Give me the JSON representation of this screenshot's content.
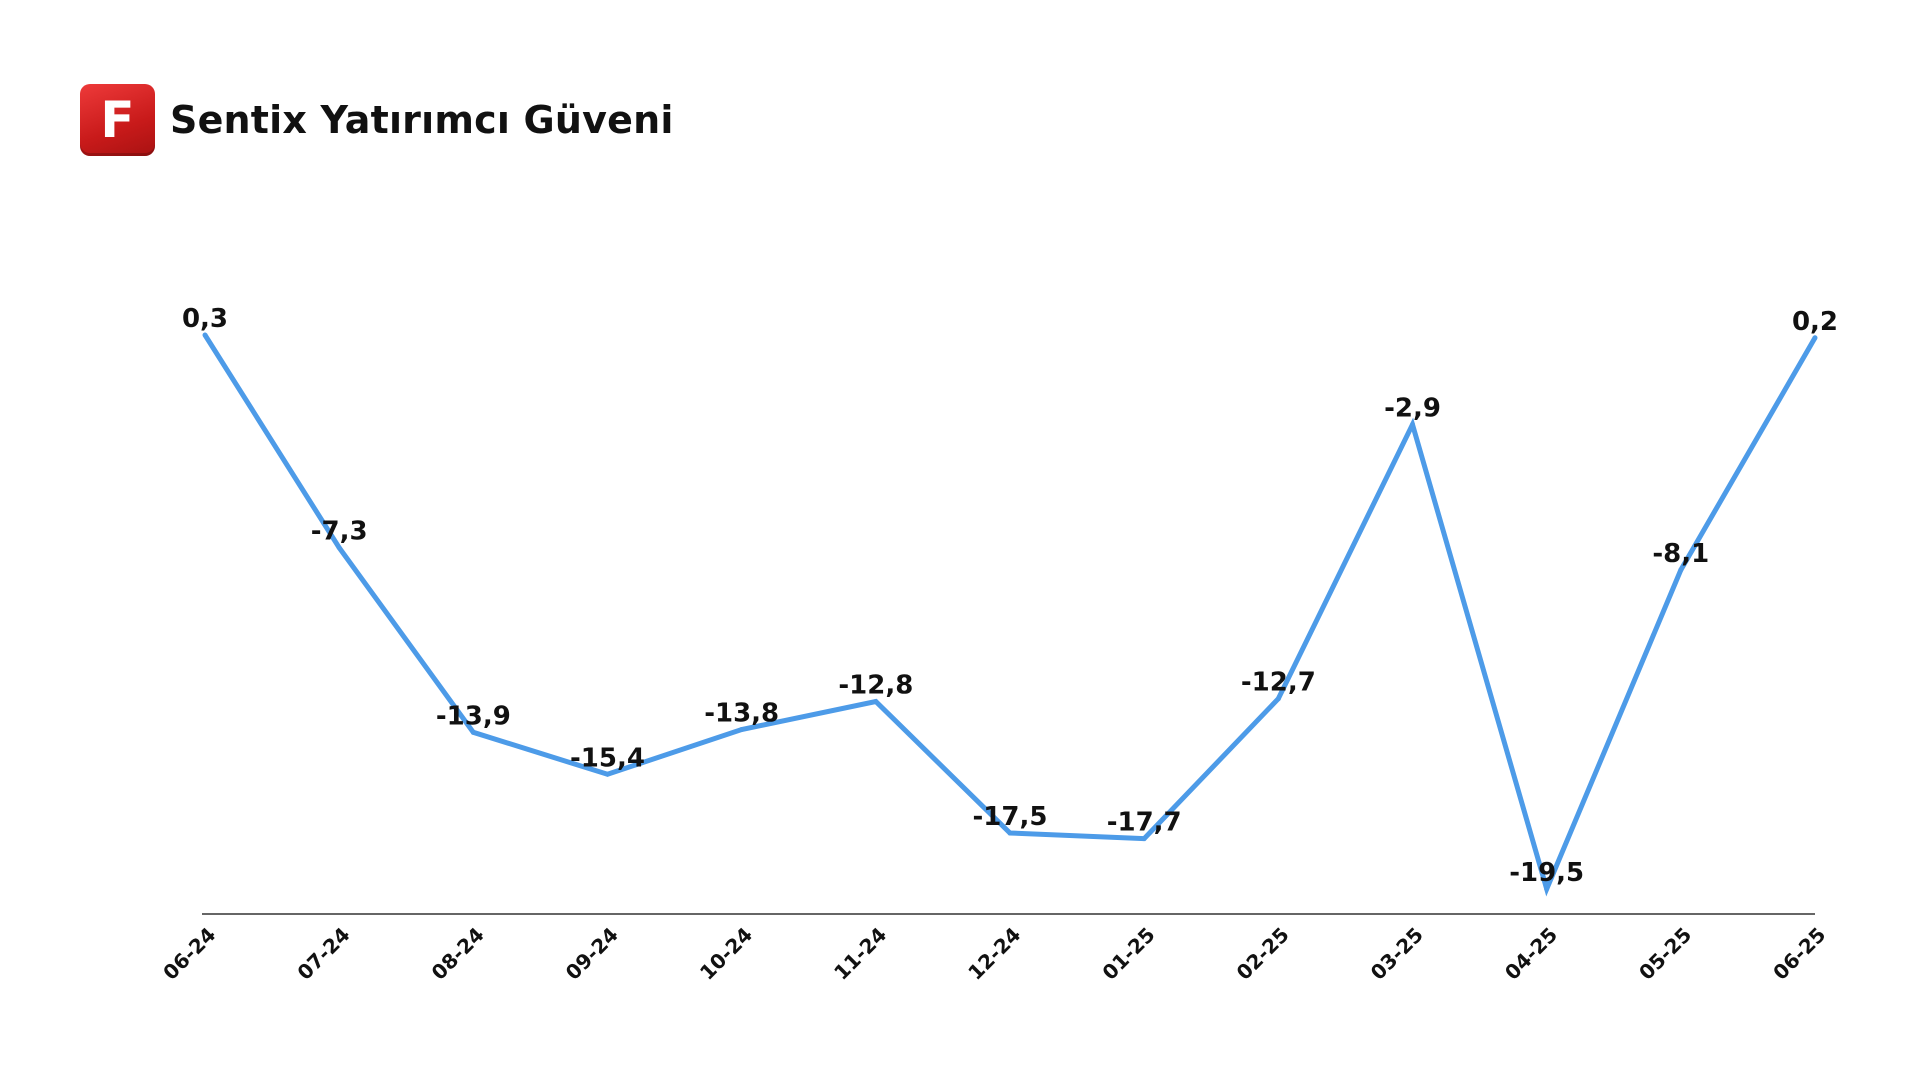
{
  "header": {
    "logo_letter": "F",
    "title": "Sentix Yatırımcı Güveni"
  },
  "colors": {
    "line": "#4d9be8",
    "axis": "#333333",
    "logo": "#d42020",
    "text": "#111111"
  },
  "chart_data": {
    "type": "line",
    "title": "Sentix Yatırımcı Güveni",
    "xlabel": "",
    "ylabel": "",
    "categories": [
      "06-24",
      "07-24",
      "08-24",
      "09-24",
      "10-24",
      "11-24",
      "12-24",
      "01-25",
      "02-25",
      "03-25",
      "04-25",
      "05-25",
      "06-25"
    ],
    "values": [
      0.3,
      -7.3,
      -13.9,
      -15.4,
      -13.8,
      -12.8,
      -17.5,
      -17.7,
      -12.7,
      -2.9,
      -19.5,
      -8.1,
      0.2
    ],
    "value_labels": [
      "0,3",
      "-7,3",
      "-13,9",
      "-15,4",
      "-13,8",
      "-12,8",
      "-17,5",
      "-17,7",
      "-12,7",
      "-2,9",
      "-19,5",
      "-8,1",
      "0,2"
    ],
    "ylim": [
      -20,
      0.3
    ],
    "grid": false,
    "legend": "none"
  }
}
